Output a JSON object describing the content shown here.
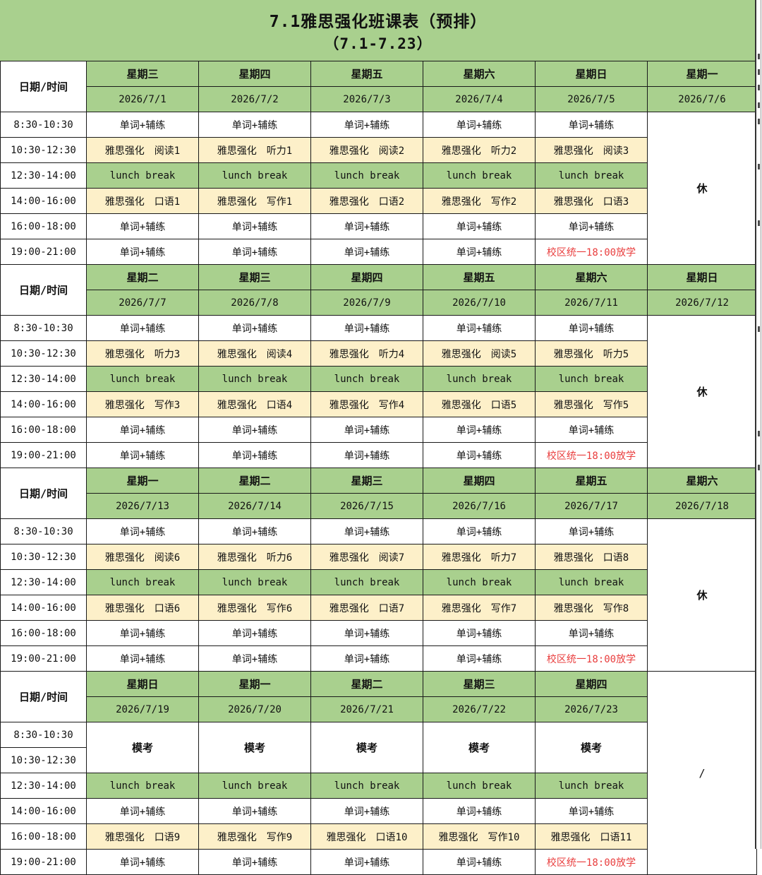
{
  "title": {
    "line1": "7.1雅思强化班课表（预排）",
    "line2": "（7.1-7.23）"
  },
  "corner_label": "日期/时间",
  "colors": {
    "green": "#a9d08e",
    "yellow": "#fdf0c9",
    "red": "#e93d3d",
    "border": "#1a1a1a"
  },
  "weeks": [
    {
      "days": [
        "星期三",
        "星期四",
        "星期五",
        "星期六",
        "星期日"
      ],
      "dates": [
        "2026/7/1",
        "2026/7/2",
        "2026/7/3",
        "2026/7/4",
        "2026/7/5"
      ],
      "off": {
        "day": "星期一",
        "date": "2026/7/6",
        "label": "休",
        "full_column": false
      },
      "slots": [
        {
          "times": [
            "8:30-10:30"
          ],
          "style": "white",
          "cells": [
            "单词+辅练",
            "单词+辅练",
            "单词+辅练",
            "单词+辅练",
            "单词+辅练"
          ]
        },
        {
          "times": [
            "10:30-12:30"
          ],
          "style": "yellow",
          "cells": [
            "雅思强化　阅读1",
            "雅思强化　听力1",
            "雅思强化　阅读2",
            "雅思强化　听力2",
            "雅思强化　阅读3"
          ]
        },
        {
          "times": [
            "12:30-14:00"
          ],
          "style": "green",
          "cells": [
            "lunch break",
            "lunch break",
            "lunch break",
            "lunch break",
            "lunch break"
          ]
        },
        {
          "times": [
            "14:00-16:00"
          ],
          "style": "yellow",
          "cells": [
            "雅思强化　口语1",
            "雅思强化　写作1",
            "雅思强化　口语2",
            "雅思强化　写作2",
            "雅思强化　口语3"
          ]
        },
        {
          "times": [
            "16:00-18:00"
          ],
          "style": "white",
          "cells": [
            "单词+辅练",
            "单词+辅练",
            "单词+辅练",
            "单词+辅练",
            "单词+辅练"
          ]
        },
        {
          "times": [
            "19:00-21:00"
          ],
          "style": "white",
          "cells": [
            "单词+辅练",
            "单词+辅练",
            "单词+辅练",
            "单词+辅练",
            {
              "text": "校区统一18:00放学",
              "red": true
            }
          ]
        }
      ]
    },
    {
      "days": [
        "星期二",
        "星期三",
        "星期四",
        "星期五",
        "星期六"
      ],
      "dates": [
        "2026/7/7",
        "2026/7/8",
        "2026/7/9",
        "2026/7/10",
        "2026/7/11"
      ],
      "off": {
        "day": "星期日",
        "date": "2026/7/12",
        "label": "休",
        "full_column": false
      },
      "slots": [
        {
          "times": [
            "8:30-10:30"
          ],
          "style": "white",
          "cells": [
            "单词+辅练",
            "单词+辅练",
            "单词+辅练",
            "单词+辅练",
            "单词+辅练"
          ]
        },
        {
          "times": [
            "10:30-12:30"
          ],
          "style": "yellow",
          "cells": [
            "雅思强化　听力3",
            "雅思强化　阅读4",
            "雅思强化　听力4",
            "雅思强化　阅读5",
            "雅思强化　听力5"
          ]
        },
        {
          "times": [
            "12:30-14:00"
          ],
          "style": "green",
          "cells": [
            "lunch break",
            "lunch break",
            "lunch break",
            "lunch break",
            "lunch break"
          ]
        },
        {
          "times": [
            "14:00-16:00"
          ],
          "style": "yellow",
          "cells": [
            "雅思强化　写作3",
            "雅思强化　口语4",
            "雅思强化　写作4",
            "雅思强化　口语5",
            "雅思强化　写作5"
          ]
        },
        {
          "times": [
            "16:00-18:00"
          ],
          "style": "white",
          "cells": [
            "单词+辅练",
            "单词+辅练",
            "单词+辅练",
            "单词+辅练",
            "单词+辅练"
          ]
        },
        {
          "times": [
            "19:00-21:00"
          ],
          "style": "white",
          "cells": [
            "单词+辅练",
            "单词+辅练",
            "单词+辅练",
            "单词+辅练",
            {
              "text": "校区统一18:00放学",
              "red": true
            }
          ]
        }
      ]
    },
    {
      "days": [
        "星期一",
        "星期二",
        "星期三",
        "星期四",
        "星期五"
      ],
      "dates": [
        "2026/7/13",
        "2026/7/14",
        "2026/7/15",
        "2026/7/16",
        "2026/7/17"
      ],
      "off": {
        "day": "星期六",
        "date": "2026/7/18",
        "label": "休",
        "full_column": false
      },
      "slots": [
        {
          "times": [
            "8:30-10:30"
          ],
          "style": "white",
          "cells": [
            "单词+辅练",
            "单词+辅练",
            "单词+辅练",
            "单词+辅练",
            "单词+辅练"
          ]
        },
        {
          "times": [
            "10:30-12:30"
          ],
          "style": "yellow",
          "cells": [
            "雅思强化　阅读6",
            "雅思强化　听力6",
            "雅思强化　阅读7",
            "雅思强化　听力7",
            "雅思强化　口语8"
          ]
        },
        {
          "times": [
            "12:30-14:00"
          ],
          "style": "green",
          "cells": [
            "lunch break",
            "lunch break",
            "lunch break",
            "lunch break",
            "lunch break"
          ]
        },
        {
          "times": [
            "14:00-16:00"
          ],
          "style": "yellow",
          "cells": [
            "雅思强化　口语6",
            "雅思强化　写作6",
            "雅思强化　口语7",
            "雅思强化　写作7",
            "雅思强化　写作8"
          ]
        },
        {
          "times": [
            "16:00-18:00"
          ],
          "style": "white",
          "cells": [
            "单词+辅练",
            "单词+辅练",
            "单词+辅练",
            "单词+辅练",
            "单词+辅练"
          ]
        },
        {
          "times": [
            "19:00-21:00"
          ],
          "style": "white",
          "cells": [
            "单词+辅练",
            "单词+辅练",
            "单词+辅练",
            "单词+辅练",
            {
              "text": "校区统一18:00放学",
              "red": true
            }
          ]
        }
      ]
    },
    {
      "days": [
        "星期日",
        "星期一",
        "星期二",
        "星期三",
        "星期四"
      ],
      "dates": [
        "2026/7/19",
        "2026/7/20",
        "2026/7/21",
        "2026/7/22",
        "2026/7/23"
      ],
      "off": {
        "day": "",
        "date": "",
        "label": "/",
        "full_column": true
      },
      "slots": [
        {
          "times": [
            "8:30-10:30",
            "10:30-12:30"
          ],
          "style": "mock",
          "cells": [
            "模考",
            "模考",
            "模考",
            "模考",
            "模考"
          ]
        },
        {
          "times": [
            "12:30-14:00"
          ],
          "style": "green",
          "cells": [
            "lunch break",
            "lunch break",
            "lunch break",
            "lunch break",
            "lunch break"
          ]
        },
        {
          "times": [
            "14:00-16:00"
          ],
          "style": "white",
          "cells": [
            "单词+辅练",
            "单词+辅练",
            "单词+辅练",
            "单词+辅练",
            "单词+辅练"
          ]
        },
        {
          "times": [
            "16:00-18:00"
          ],
          "style": "yellow",
          "cells": [
            "雅思强化　口语9",
            "雅思强化　写作9",
            "雅思强化　口语10",
            "雅思强化　写作10",
            "雅思强化　口语11"
          ]
        },
        {
          "times": [
            "19:00-21:00"
          ],
          "style": "white",
          "cells": [
            "单词+辅练",
            "单词+辅练",
            "单词+辅练",
            "单词+辅练",
            {
              "text": "校区统一18:00放学",
              "red": true
            }
          ]
        }
      ]
    }
  ]
}
